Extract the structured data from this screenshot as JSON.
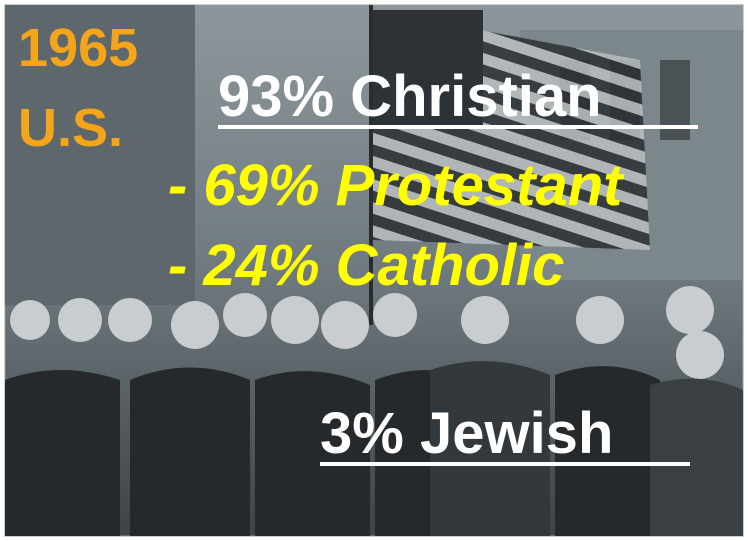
{
  "slide": {
    "year": "1965",
    "country": "U.S.",
    "lines": [
      "93% Christian",
      "- 69% Protestant",
      "- 24% Catholic"
    ],
    "footer": "3% Jewish"
  }
}
